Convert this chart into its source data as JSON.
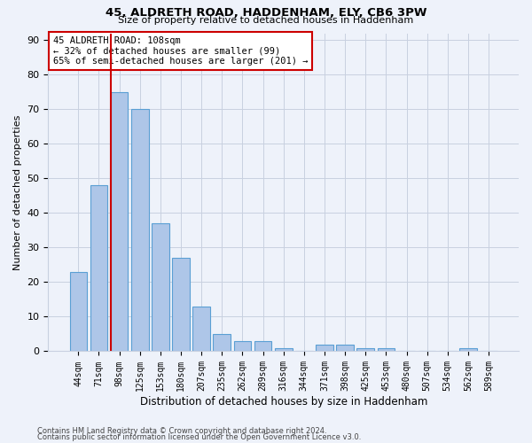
{
  "title1": "45, ALDRETH ROAD, HADDENHAM, ELY, CB6 3PW",
  "title2": "Size of property relative to detached houses in Haddenham",
  "xlabel": "Distribution of detached houses by size in Haddenham",
  "ylabel": "Number of detached properties",
  "categories": [
    "44sqm",
    "71sqm",
    "98sqm",
    "125sqm",
    "153sqm",
    "180sqm",
    "207sqm",
    "235sqm",
    "262sqm",
    "289sqm",
    "316sqm",
    "344sqm",
    "371sqm",
    "398sqm",
    "425sqm",
    "453sqm",
    "480sqm",
    "507sqm",
    "534sqm",
    "562sqm",
    "589sqm"
  ],
  "values": [
    23,
    48,
    75,
    70,
    37,
    27,
    13,
    5,
    3,
    3,
    1,
    0,
    2,
    2,
    1,
    1,
    0,
    0,
    0,
    1,
    0
  ],
  "bar_color": "#aec6e8",
  "bar_edge_color": "#5a9fd4",
  "marker_bar_index": 2,
  "marker_color": "#cc0000",
  "annotation_line1": "45 ALDRETH ROAD: 108sqm",
  "annotation_line2": "← 32% of detached houses are smaller (99)",
  "annotation_line3": "65% of semi-detached houses are larger (201) →",
  "annotation_box_color": "#ffffff",
  "annotation_box_edge": "#cc0000",
  "ylim_max": 92,
  "yticks": [
    0,
    10,
    20,
    30,
    40,
    50,
    60,
    70,
    80,
    90
  ],
  "footer1": "Contains HM Land Registry data © Crown copyright and database right 2024.",
  "footer2": "Contains public sector information licensed under the Open Government Licence v3.0.",
  "bg_color": "#eef2fa"
}
